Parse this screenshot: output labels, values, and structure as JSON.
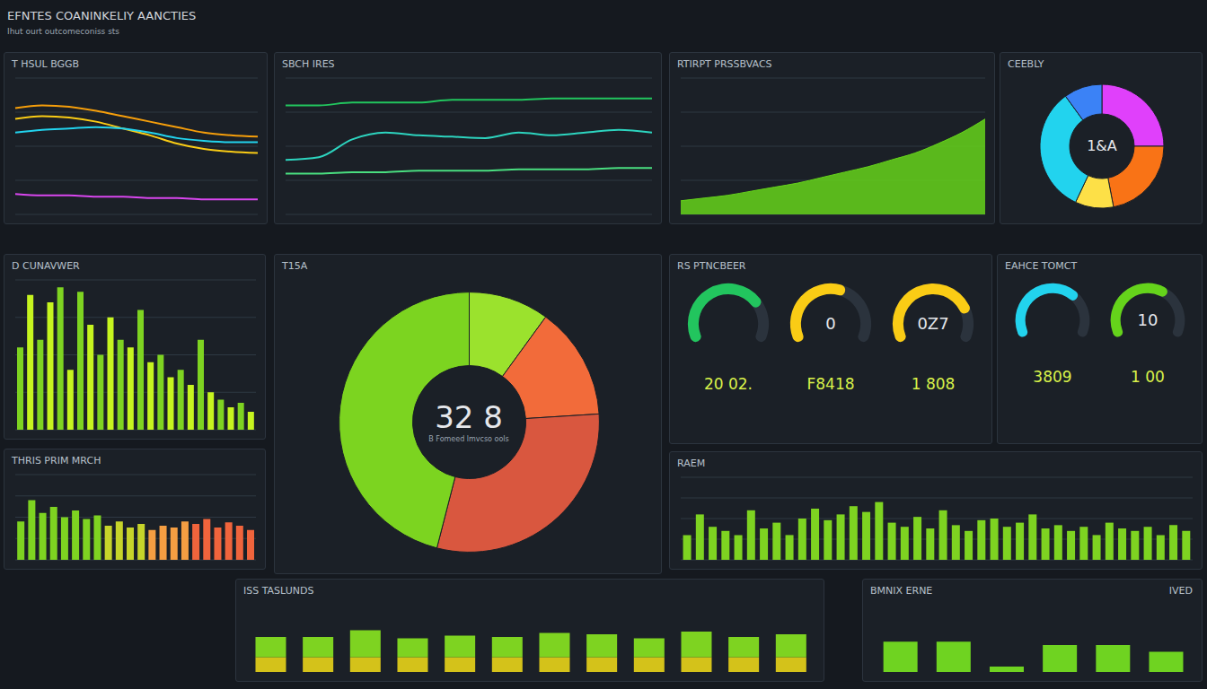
{
  "title": "EFNTES COANINKELIY AANCTIES",
  "subtitle": "Ihut ourt outcomeconiss sts",
  "chart_data": [
    {
      "type": "line",
      "title": "T HSUL BGGB",
      "categories": [
        null,
        null,
        null,
        null,
        null,
        null,
        null,
        null,
        null,
        null
      ],
      "series": [
        {
          "color": "#f59e0b",
          "values": [
            78,
            80,
            79,
            76,
            72,
            68,
            64,
            60,
            58,
            57
          ]
        },
        {
          "color": "#facc15",
          "values": [
            70,
            72,
            71,
            68,
            63,
            58,
            52,
            48,
            46,
            45
          ]
        },
        {
          "color": "#22d3ee",
          "values": [
            60,
            62,
            63,
            64,
            63,
            60,
            56,
            54,
            53,
            53
          ]
        },
        {
          "color": "#d946ef",
          "values": [
            15,
            14,
            14,
            13,
            13,
            12,
            12,
            11,
            11,
            11
          ]
        }
      ],
      "ylim": [
        0,
        100
      ],
      "yticks": [
        0,
        25,
        50,
        75,
        100
      ],
      "grid": true,
      "tick_labels": false
    },
    {
      "type": "line",
      "title": "SBCH IRES",
      "categories": [
        null,
        null,
        null,
        null,
        null,
        null,
        null,
        null,
        null,
        null,
        null,
        null
      ],
      "series": [
        {
          "color": "#22c55e",
          "values": [
            80,
            80,
            82,
            82,
            82,
            84,
            84,
            84,
            85,
            85,
            85,
            85
          ]
        },
        {
          "color": "#2dd4bf",
          "values": [
            40,
            42,
            55,
            60,
            58,
            57,
            56,
            60,
            58,
            60,
            62,
            60
          ]
        },
        {
          "color": "#4ade80",
          "values": [
            30,
            30,
            31,
            31,
            32,
            32,
            32,
            33,
            33,
            33,
            34,
            34
          ]
        }
      ],
      "ylim": [
        0,
        100
      ],
      "yticks": [
        0,
        25,
        50,
        75,
        100
      ],
      "grid": true,
      "tick_labels": false
    },
    {
      "type": "area",
      "title": "RTIRPT PRSSBVACS",
      "categories": [
        null,
        null,
        null,
        null,
        null,
        null,
        null,
        null,
        null,
        null,
        null,
        null,
        null,
        null
      ],
      "values": [
        10,
        12,
        14,
        17,
        20,
        23,
        27,
        31,
        35,
        40,
        45,
        52,
        60,
        70
      ],
      "color": "#65d31b",
      "ylim": [
        0,
        100
      ],
      "yticks": [
        0,
        25,
        50,
        75,
        100
      ],
      "grid": true,
      "tick_labels": false
    },
    {
      "type": "pie",
      "title": "CEEBLY",
      "annotations": [
        "1&A"
      ],
      "categories": [
        null,
        null,
        null,
        null,
        null
      ],
      "values": [
        25,
        22,
        10,
        33,
        10
      ],
      "colors": [
        "#e040fb",
        "#f97316",
        "#fde047",
        "#22d3ee",
        "#3b82f6"
      ]
    },
    {
      "type": "bar",
      "title": "D CUNAVWER",
      "categories": [
        null,
        null,
        null,
        null,
        null,
        null,
        null,
        null,
        null,
        null,
        null,
        null,
        null,
        null,
        null,
        null,
        null,
        null,
        null,
        null,
        null,
        null,
        null,
        null
      ],
      "values": [
        55,
        90,
        60,
        85,
        95,
        40,
        92,
        70,
        50,
        75,
        60,
        55,
        80,
        45,
        50,
        35,
        40,
        30,
        60,
        25,
        20,
        15,
        18,
        12
      ],
      "colors": [
        "#7ed321",
        "#c6f41f",
        "#7ed321",
        "#c6f41f",
        "#7ed321",
        "#c6f41f",
        "#7ed321",
        "#c6f41f",
        "#7ed321",
        "#c6f41f",
        "#7ed321",
        "#c6f41f",
        "#7ed321",
        "#c6f41f",
        "#7ed321",
        "#c6f41f",
        "#7ed321",
        "#c6f41f",
        "#7ed321",
        "#c6f41f",
        "#7ed321",
        "#c6f41f",
        "#7ed321",
        "#c6f41f"
      ],
      "ylim": [
        0,
        100
      ],
      "yticks": [
        0,
        25,
        50,
        75,
        100
      ],
      "grid": true,
      "tick_labels": false
    },
    {
      "type": "pie",
      "title": "T15A",
      "annotations": [
        "32 8",
        "B Fomeed lmvcso ools"
      ],
      "categories": [
        null,
        null,
        null,
        null
      ],
      "values": [
        10,
        14,
        30,
        46
      ],
      "colors": [
        "#9be22d",
        "#f26b3a",
        "#d9573f",
        "#7cd420"
      ]
    },
    {
      "type": "radialBar",
      "title": "RS PTNCBEER",
      "categories": [
        "20 02.",
        "F8418",
        "1 808"
      ],
      "values": [
        75,
        60,
        80
      ],
      "colors": [
        "#22c55e",
        "#facc15",
        "#facc15"
      ],
      "annotations": [
        null,
        "0",
        "0Z7"
      ],
      "ylim": [
        0,
        100
      ]
    },
    {
      "type": "radialBar",
      "title": "EAHCE TOMCT",
      "categories": [
        "3809",
        "1 00"
      ],
      "values": [
        70,
        65
      ],
      "colors": [
        "#22d3ee",
        "#65d31b"
      ],
      "annotations": [
        null,
        "10"
      ],
      "ylim": [
        0,
        100
      ]
    },
    {
      "type": "bar",
      "title": "THRIS PRIM MRCH",
      "categories": [
        null,
        null,
        null,
        null,
        null,
        null,
        null,
        null,
        null,
        null,
        null,
        null,
        null,
        null,
        null,
        null,
        null,
        null,
        null,
        null,
        null,
        null
      ],
      "values": [
        45,
        70,
        55,
        62,
        50,
        58,
        48,
        52,
        40,
        45,
        38,
        42,
        35,
        40,
        38,
        45,
        42,
        48,
        38,
        44,
        40,
        35
      ],
      "colors": [
        "#7ed321",
        "#7ed321",
        "#7ed321",
        "#7ed321",
        "#7ed321",
        "#7ed321",
        "#7ed321",
        "#7ed321",
        "#c6d42a",
        "#c6d42a",
        "#c6d42a",
        "#c6d42a",
        "#f59e42",
        "#f59e42",
        "#f59e42",
        "#f59e42",
        "#f0643c",
        "#f0643c",
        "#f0643c",
        "#f0643c",
        "#f0643c",
        "#f0643c"
      ],
      "ylim": [
        0,
        100
      ],
      "yticks": [
        0,
        25,
        50,
        75,
        100
      ],
      "grid": true,
      "tick_labels": false
    },
    {
      "type": "bar",
      "title": "RAEM",
      "categories": [
        null,
        null,
        null,
        null,
        null,
        null,
        null,
        null,
        null,
        null,
        null,
        null,
        null,
        null,
        null,
        null,
        null,
        null,
        null,
        null,
        null,
        null,
        null,
        null,
        null,
        null,
        null,
        null,
        null,
        null,
        null,
        null,
        null,
        null,
        null,
        null,
        null,
        null,
        null,
        null
      ],
      "values": [
        30,
        55,
        40,
        35,
        30,
        60,
        38,
        45,
        30,
        50,
        62,
        48,
        55,
        65,
        58,
        70,
        45,
        40,
        52,
        38,
        60,
        42,
        35,
        48,
        50,
        40,
        45,
        55,
        38,
        42,
        35,
        40,
        30,
        45,
        38,
        35,
        40,
        30,
        42,
        35
      ],
      "color": "#7ed321",
      "ylim": [
        0,
        100
      ],
      "yticks": [
        0,
        25,
        50,
        75,
        100
      ],
      "grid": true,
      "tick_labels": false
    },
    {
      "type": "bar",
      "title": "ISS TASLUNDS",
      "stacked": true,
      "categories": [
        null,
        null,
        null,
        null,
        null,
        null,
        null,
        null,
        null,
        null,
        null,
        null
      ],
      "series": [
        {
          "color": "#d4c21a",
          "values": [
            22,
            22,
            22,
            22,
            22,
            22,
            22,
            22,
            22,
            22,
            22,
            22
          ]
        },
        {
          "color": "#7ed321",
          "values": [
            30,
            30,
            40,
            28,
            32,
            30,
            36,
            34,
            28,
            38,
            30,
            34
          ]
        }
      ],
      "ylim": [
        0,
        100
      ],
      "yticks": [
        0,
        25,
        50,
        75,
        100
      ],
      "grid": false,
      "tick_labels": false
    },
    {
      "type": "bar",
      "title": "BMNIX ERNE",
      "annotations": [
        "IVED"
      ],
      "categories": [
        null,
        null,
        null,
        null,
        null,
        null
      ],
      "values": [
        45,
        45,
        8,
        40,
        40,
        30
      ],
      "color": "#6fd321",
      "ylim": [
        0,
        100
      ],
      "yticks": [
        0,
        25,
        50,
        75,
        100
      ],
      "grid": false,
      "tick_labels": false
    }
  ]
}
